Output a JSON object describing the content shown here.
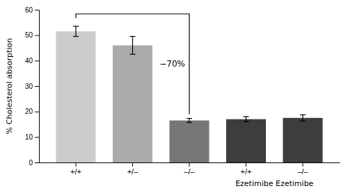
{
  "chart_data": {
    "type": "bar",
    "categories": [
      "+/+",
      "+/–",
      "–/–",
      "+/+",
      "–/–"
    ],
    "values": [
      51.5,
      46.0,
      16.5,
      17.0,
      17.5
    ],
    "errors": [
      2.0,
      3.5,
      0.8,
      1.0,
      1.2
    ],
    "colors": [
      "#cccccc",
      "#aaaaaa",
      "#777777",
      "#3d3d3d",
      "#3d3d3d"
    ],
    "ylabel": "% Cholesterol absorption",
    "ylim": [
      0,
      60
    ],
    "yticks": [
      0,
      10,
      20,
      30,
      40,
      50,
      60
    ],
    "annotations": [
      "Ezetimibe Ezetimibe",
      "−70%"
    ],
    "grid": false
  }
}
